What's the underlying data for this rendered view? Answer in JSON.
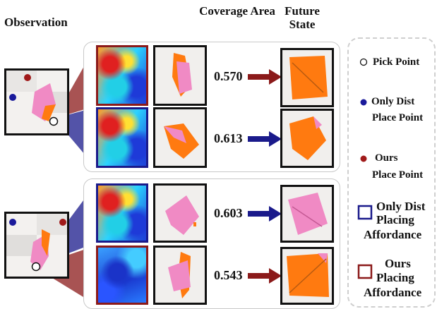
{
  "headers": {
    "observation": "Observation",
    "coverage": "Coverage Area",
    "future": "Future State"
  },
  "rows": [
    {
      "score": "0.570",
      "arrow_color": "#8b1a1a",
      "heat_border": "#8b1a1a"
    },
    {
      "score": "0.613",
      "arrow_color": "#1a1a8b",
      "heat_border": "#1a1a8b"
    },
    {
      "score": "0.603",
      "arrow_color": "#1a1a8b",
      "heat_border": "#1a1a8b"
    },
    {
      "score": "0.543",
      "arrow_color": "#8b1a1a",
      "heat_border": "#8b1a1a"
    }
  ],
  "legend": {
    "pick": "Pick Point",
    "only_dist_place_1": "Only Dist",
    "only_dist_place_2": "Place Point",
    "ours_place_1": "Ours",
    "ours_place_2": "Place Point",
    "only_dist_aff_1": "Only Dist",
    "only_dist_aff_2": "Placing",
    "only_dist_aff_3": "Affordance",
    "ours_aff_1": "Ours",
    "ours_aff_2": "Placing",
    "ours_aff_3": "Affordance"
  },
  "colors": {
    "ours": "#8b1a1a",
    "only_dist": "#1a1a8b",
    "cloth_pink": "#f080c0",
    "cloth_orange": "#ff7a10"
  }
}
